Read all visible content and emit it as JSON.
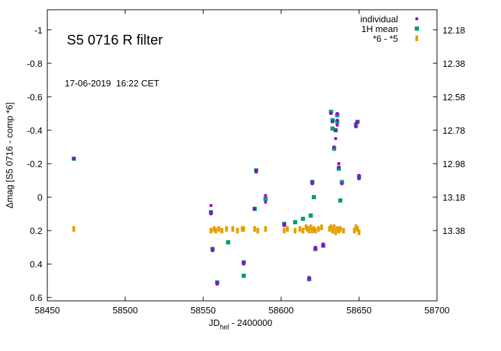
{
  "chart_data": {
    "type": "scatter",
    "title": "S5 0716 R filter",
    "annotation": "17-06-2019  16:22 CET",
    "xlabel_main": "JD",
    "xlabel_sub": "hel",
    "xlabel_tail": " - 2400000",
    "ylabel": "Δmag [S5 0716 - comp *6]",
    "xlim": [
      58450,
      58700
    ],
    "ylim": [
      0.62,
      -1.12
    ],
    "y_reversed": true,
    "grid": false,
    "legend_position": "top-right",
    "x_ticks": [
      58450,
      58500,
      58550,
      58600,
      58650,
      58700
    ],
    "x_tick_labels": [
      "58450",
      "58500",
      "58550",
      "58600",
      "58650",
      "58700"
    ],
    "y_ticks": [
      -1,
      -0.8,
      -0.6,
      -0.4,
      -0.2,
      0,
      0.2,
      0.4,
      0.6
    ],
    "y_tick_labels": [
      "-1",
      "-0.8",
      "-0.6",
      "-0.4",
      "-0.2",
      "0",
      "0.2",
      "0.4",
      "0.6"
    ],
    "y2_ticks": [
      -1,
      -0.8,
      -0.6,
      -0.4,
      -0.2,
      0,
      0.2
    ],
    "y2_tick_labels": [
      "12.18",
      "12.38",
      "12.58",
      "12.78",
      "12.98",
      "13.18",
      "13.38"
    ],
    "series": [
      {
        "name": "individual",
        "color": "#9400d3",
        "marker": "small-square",
        "points": [
          [
            58467,
            -0.23
          ],
          [
            58555,
            0.05
          ],
          [
            58555,
            0.09
          ],
          [
            58555,
            0.1
          ],
          [
            58556,
            0.31
          ],
          [
            58556,
            0.32
          ],
          [
            58559,
            0.51
          ],
          [
            58559,
            0.52
          ],
          [
            58576,
            0.39
          ],
          [
            58576,
            0.4
          ],
          [
            58583,
            0.07
          ],
          [
            58584,
            -0.16
          ],
          [
            58584,
            -0.15
          ],
          [
            58590,
            -0.01
          ],
          [
            58590,
            0.03
          ],
          [
            58602,
            0.16
          ],
          [
            58602,
            0.17
          ],
          [
            58618,
            0.48
          ],
          [
            58618,
            0.49
          ],
          [
            58620,
            -0.09
          ],
          [
            58620,
            -0.08
          ],
          [
            58622,
            0.3
          ],
          [
            58622,
            0.31
          ],
          [
            58627,
            0.28
          ],
          [
            58627,
            0.29
          ],
          [
            58632,
            -0.5
          ],
          [
            58633,
            -0.45
          ],
          [
            58634,
            -0.3
          ],
          [
            58635,
            -0.35
          ],
          [
            58635,
            -0.4
          ],
          [
            58636,
            -0.43
          ],
          [
            58636,
            -0.46
          ],
          [
            58636,
            -0.5
          ],
          [
            58637,
            -0.2
          ],
          [
            58637,
            -0.18
          ],
          [
            58639,
            -0.08
          ],
          [
            58648,
            -0.44
          ],
          [
            58648,
            -0.42
          ],
          [
            58649,
            -0.45
          ],
          [
            58650,
            -0.13
          ],
          [
            58650,
            -0.11
          ]
        ]
      },
      {
        "name": "1H mean",
        "color": "#009e73",
        "marker": "square",
        "points": [
          [
            58467,
            -0.23
          ],
          [
            58555,
            0.09
          ],
          [
            58556,
            0.31
          ],
          [
            58559,
            0.51
          ],
          [
            58566,
            0.27
          ],
          [
            58576,
            0.39
          ],
          [
            58576,
            0.47
          ],
          [
            58583,
            0.07
          ],
          [
            58584,
            -0.16
          ],
          [
            58590,
            0.01
          ],
          [
            58602,
            0.16
          ],
          [
            58609,
            0.15
          ],
          [
            58614,
            0.13
          ],
          [
            58618,
            0.49
          ],
          [
            58619,
            0.11
          ],
          [
            58620,
            -0.09
          ],
          [
            58621,
            0.0
          ],
          [
            58622,
            0.31
          ],
          [
            58627,
            0.29
          ],
          [
            58632,
            -0.51
          ],
          [
            58633,
            -0.41
          ],
          [
            58633,
            -0.46
          ],
          [
            58634,
            -0.29
          ],
          [
            58635,
            -0.4
          ],
          [
            58636,
            -0.45
          ],
          [
            58636,
            -0.49
          ],
          [
            58637,
            -0.17
          ],
          [
            58638,
            0.02
          ],
          [
            58639,
            -0.09
          ],
          [
            58648,
            -0.43
          ],
          [
            58649,
            -0.45
          ],
          [
            58650,
            -0.12
          ]
        ]
      },
      {
        "name": "*6 - *5",
        "color": "#e69f00",
        "marker": "tall-rect",
        "points": [
          [
            58467,
            0.19
          ],
          [
            58555,
            0.2
          ],
          [
            58557,
            0.19
          ],
          [
            58558,
            0.2
          ],
          [
            58560,
            0.19
          ],
          [
            58562,
            0.2
          ],
          [
            58565,
            0.19
          ],
          [
            58569,
            0.19
          ],
          [
            58572,
            0.2
          ],
          [
            58575,
            0.19
          ],
          [
            58576,
            0.19
          ],
          [
            58583,
            0.19
          ],
          [
            58585,
            0.2
          ],
          [
            58590,
            0.19
          ],
          [
            58602,
            0.2
          ],
          [
            58604,
            0.19
          ],
          [
            58609,
            0.2
          ],
          [
            58612,
            0.19
          ],
          [
            58614,
            0.2
          ],
          [
            58616,
            0.18
          ],
          [
            58617,
            0.19
          ],
          [
            58618,
            0.2
          ],
          [
            58619,
            0.18
          ],
          [
            58620,
            0.2
          ],
          [
            58621,
            0.19
          ],
          [
            58622,
            0.2
          ],
          [
            58624,
            0.19
          ],
          [
            58626,
            0.18
          ],
          [
            58631,
            0.19
          ],
          [
            58632,
            0.18
          ],
          [
            58633,
            0.2
          ],
          [
            58634,
            0.18
          ],
          [
            58635,
            0.21
          ],
          [
            58636,
            0.19
          ],
          [
            58637,
            0.2
          ],
          [
            58638,
            0.19
          ],
          [
            58640,
            0.2
          ],
          [
            58647,
            0.2
          ],
          [
            58648,
            0.18
          ],
          [
            58649,
            0.19
          ],
          [
            58650,
            0.21
          ]
        ]
      }
    ]
  }
}
